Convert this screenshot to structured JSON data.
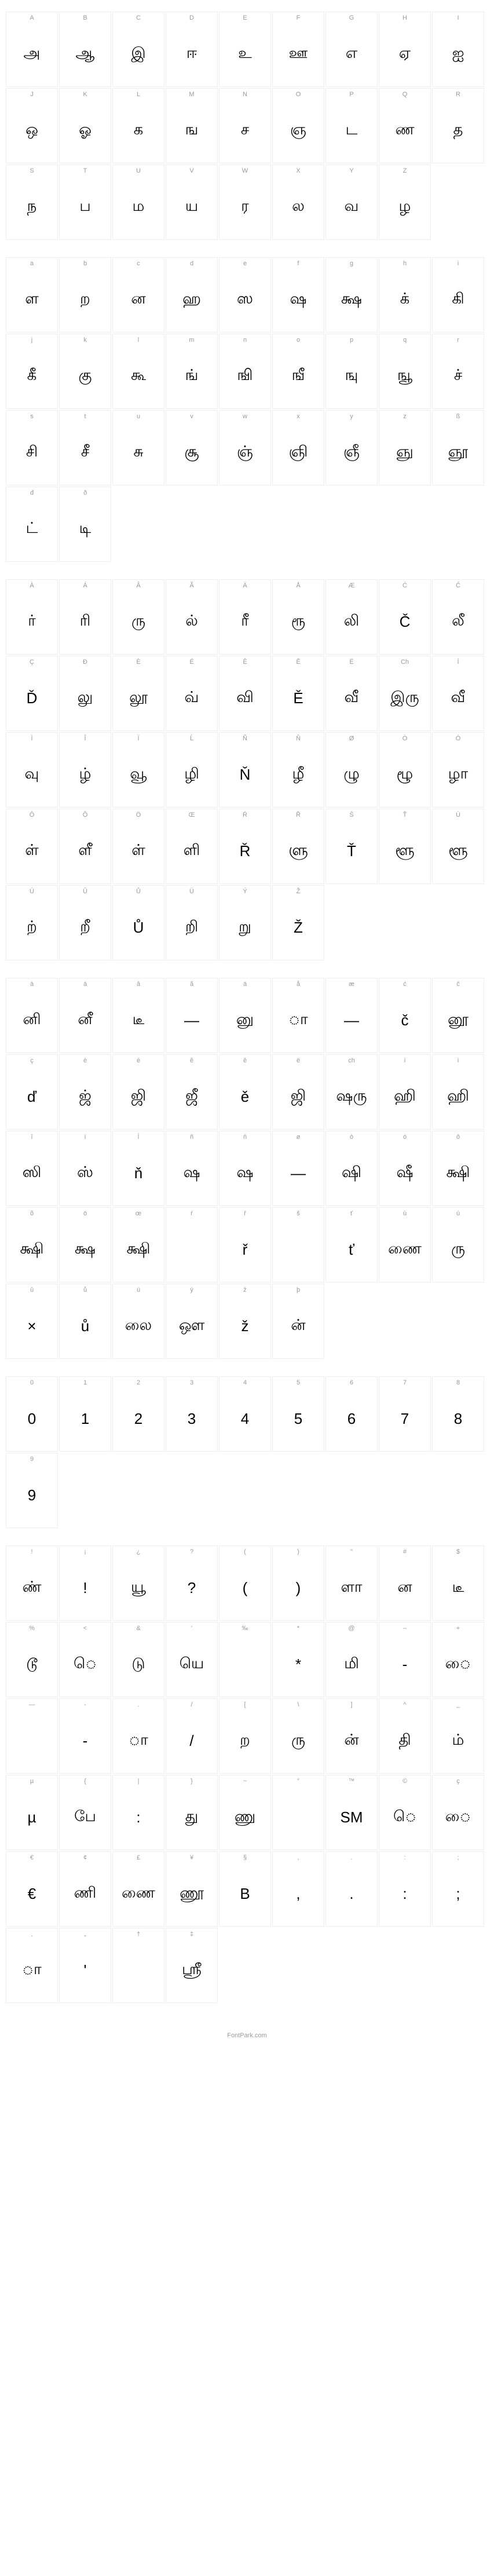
{
  "sections": [
    {
      "id": "uppercase",
      "cells": [
        {
          "label": "A",
          "glyph": "அ"
        },
        {
          "label": "B",
          "glyph": "ஆ"
        },
        {
          "label": "C",
          "glyph": "இ"
        },
        {
          "label": "D",
          "glyph": "ஈ"
        },
        {
          "label": "E",
          "glyph": "உ"
        },
        {
          "label": "F",
          "glyph": "ஊ"
        },
        {
          "label": "G",
          "glyph": "எ"
        },
        {
          "label": "H",
          "glyph": "ஏ"
        },
        {
          "label": "I",
          "glyph": "ஐ"
        },
        {
          "label": "J",
          "glyph": "ஒ"
        },
        {
          "label": "K",
          "glyph": "ஓ"
        },
        {
          "label": "L",
          "glyph": "க"
        },
        {
          "label": "M",
          "glyph": "ங"
        },
        {
          "label": "N",
          "glyph": "ச"
        },
        {
          "label": "O",
          "glyph": "ஞ"
        },
        {
          "label": "P",
          "glyph": "ட"
        },
        {
          "label": "Q",
          "glyph": "ண"
        },
        {
          "label": "R",
          "glyph": "த"
        },
        {
          "label": "S",
          "glyph": "ந"
        },
        {
          "label": "T",
          "glyph": "ப"
        },
        {
          "label": "U",
          "glyph": "ம"
        },
        {
          "label": "V",
          "glyph": "ய"
        },
        {
          "label": "W",
          "glyph": "ர"
        },
        {
          "label": "X",
          "glyph": "ல"
        },
        {
          "label": "Y",
          "glyph": "வ"
        },
        {
          "label": "Z",
          "glyph": "ழ"
        }
      ]
    },
    {
      "id": "lowercase",
      "cells": [
        {
          "label": "a",
          "glyph": "ள"
        },
        {
          "label": "b",
          "glyph": "ற"
        },
        {
          "label": "c",
          "glyph": "ன"
        },
        {
          "label": "d",
          "glyph": "ஹ"
        },
        {
          "label": "e",
          "glyph": "ஸ"
        },
        {
          "label": "f",
          "glyph": "ஷ"
        },
        {
          "label": "g",
          "glyph": "க்ஷ"
        },
        {
          "label": "h",
          "glyph": "க்"
        },
        {
          "label": "i",
          "glyph": "கி"
        },
        {
          "label": "j",
          "glyph": "கீ"
        },
        {
          "label": "k",
          "glyph": "கு"
        },
        {
          "label": "l",
          "glyph": "கூ"
        },
        {
          "label": "m",
          "glyph": "ங்"
        },
        {
          "label": "n",
          "glyph": "ஙி"
        },
        {
          "label": "o",
          "glyph": "ஙீ"
        },
        {
          "label": "p",
          "glyph": "ஙு"
        },
        {
          "label": "q",
          "glyph": "ஙூ"
        },
        {
          "label": "r",
          "glyph": "ச்"
        },
        {
          "label": "s",
          "glyph": "சி"
        },
        {
          "label": "t",
          "glyph": "சீ"
        },
        {
          "label": "u",
          "glyph": "சு"
        },
        {
          "label": "v",
          "glyph": "சூ"
        },
        {
          "label": "w",
          "glyph": "ஞ்"
        },
        {
          "label": "x",
          "glyph": "ஞி"
        },
        {
          "label": "y",
          "glyph": "ஞீ"
        },
        {
          "label": "z",
          "glyph": "ஞு"
        },
        {
          "label": "ß",
          "glyph": "ஞூ"
        },
        {
          "label": "đ",
          "glyph": "ட்"
        },
        {
          "label": "ð",
          "glyph": "டி"
        }
      ]
    },
    {
      "id": "accented-upper",
      "cells": [
        {
          "label": "À",
          "glyph": "ர்"
        },
        {
          "label": "Á",
          "glyph": "ரி"
        },
        {
          "label": "Â",
          "glyph": "ரு"
        },
        {
          "label": "Ã",
          "glyph": "ல்"
        },
        {
          "label": "Ä",
          "glyph": "ரீ"
        },
        {
          "label": "Å",
          "glyph": "ரூ"
        },
        {
          "label": "Æ",
          "glyph": "லி"
        },
        {
          "label": "Ć",
          "glyph": "Č"
        },
        {
          "label": "Č",
          "glyph": "லீ"
        },
        {
          "label": "Ç",
          "glyph": "Ď"
        },
        {
          "label": "Đ",
          "glyph": "லு"
        },
        {
          "label": "È",
          "glyph": "லூ"
        },
        {
          "label": "É",
          "glyph": "வ்"
        },
        {
          "label": "Ê",
          "glyph": "வி"
        },
        {
          "label": "Ě",
          "glyph": "Ě"
        },
        {
          "label": "Ë",
          "glyph": "வீ"
        },
        {
          "label": "Ch",
          "glyph": "இரு"
        },
        {
          "label": "Í",
          "glyph": "வீ"
        },
        {
          "label": "Ì",
          "glyph": "வு"
        },
        {
          "label": "Î",
          "glyph": "ழ்"
        },
        {
          "label": "Ï",
          "glyph": "வூ"
        },
        {
          "label": "Ĺ",
          "glyph": "ழி"
        },
        {
          "label": "Ñ",
          "glyph": "Ň"
        },
        {
          "label": "Ň",
          "glyph": "ழீ"
        },
        {
          "label": "Ø",
          "glyph": "ழு"
        },
        {
          "label": "Ò",
          "glyph": "ழூ"
        },
        {
          "label": "Ó",
          "glyph": "ழா"
        },
        {
          "label": "Ô",
          "glyph": "ள்"
        },
        {
          "label": "Õ",
          "glyph": "ளீ"
        },
        {
          "label": "Ö",
          "glyph": "ள்"
        },
        {
          "label": "Œ",
          "glyph": "ளி"
        },
        {
          "label": "Ŕ",
          "glyph": "Ř"
        },
        {
          "label": "Ř",
          "glyph": "ளு"
        },
        {
          "label": "Š",
          "glyph": "Ť"
        },
        {
          "label": "Ť",
          "glyph": "ளூ"
        },
        {
          "label": "Ù",
          "glyph": "ளூ"
        },
        {
          "label": "Ú",
          "glyph": "ற்"
        },
        {
          "label": "Û",
          "glyph": "றீ"
        },
        {
          "label": "Ů",
          "glyph": "Ů"
        },
        {
          "label": "Ü",
          "glyph": "றி"
        },
        {
          "label": "Ý",
          "glyph": "று"
        },
        {
          "label": "Ž",
          "glyph": "Ž"
        }
      ]
    },
    {
      "id": "accented-lower",
      "cells": [
        {
          "label": "à",
          "glyph": "னி"
        },
        {
          "label": "á",
          "glyph": "னீ"
        },
        {
          "label": "â",
          "glyph": "டீ"
        },
        {
          "label": "ã",
          "glyph": "—"
        },
        {
          "label": "ä",
          "glyph": "னு"
        },
        {
          "label": "å",
          "glyph": "ா"
        },
        {
          "label": "æ",
          "glyph": "—"
        },
        {
          "label": "ć",
          "glyph": "č"
        },
        {
          "label": "č",
          "glyph": "னூ"
        },
        {
          "label": "ç",
          "glyph": "ď"
        },
        {
          "label": "è",
          "glyph": "ஜ்"
        },
        {
          "label": "é",
          "glyph": "ஜி"
        },
        {
          "label": "ê",
          "glyph": "ஜீ"
        },
        {
          "label": "ě",
          "glyph": "ě"
        },
        {
          "label": "ë",
          "glyph": "ஜி"
        },
        {
          "label": "ch",
          "glyph": "ஷரு"
        },
        {
          "label": "í",
          "glyph": "ஹி"
        },
        {
          "label": "ì",
          "glyph": "ஹி"
        },
        {
          "label": "î",
          "glyph": "ஸி"
        },
        {
          "label": "ï",
          "glyph": "ஸ்"
        },
        {
          "label": "ĺ",
          "glyph": "ň"
        },
        {
          "label": "ñ",
          "glyph": "ஷ"
        },
        {
          "label": "ň",
          "glyph": "ஷ"
        },
        {
          "label": "ø",
          "glyph": "—"
        },
        {
          "label": "ò",
          "glyph": "ஷி"
        },
        {
          "label": "ó",
          "glyph": "ஷீ"
        },
        {
          "label": "ô",
          "glyph": "க்ஷி"
        },
        {
          "label": "õ",
          "glyph": "க்ஷி"
        },
        {
          "label": "ö",
          "glyph": "க்ஷ"
        },
        {
          "label": "œ",
          "glyph": "க்ஷி"
        },
        {
          "label": "ŕ",
          "glyph": ""
        },
        {
          "label": "ř",
          "glyph": "ř"
        },
        {
          "label": "š",
          "glyph": ""
        },
        {
          "label": "ť",
          "glyph": "ť"
        },
        {
          "label": "ù",
          "glyph": "ணை"
        },
        {
          "label": "ú",
          "glyph": "ரு"
        },
        {
          "label": "û",
          "glyph": "×"
        },
        {
          "label": "ů",
          "glyph": "ů"
        },
        {
          "label": "ü",
          "glyph": "லை"
        },
        {
          "label": "ý",
          "glyph": "ஔ"
        },
        {
          "label": "ž",
          "glyph": "ž"
        },
        {
          "label": "þ",
          "glyph": "ன்"
        }
      ]
    },
    {
      "id": "digits",
      "cells": [
        {
          "label": "0",
          "glyph": "0"
        },
        {
          "label": "1",
          "glyph": "1"
        },
        {
          "label": "2",
          "glyph": "2"
        },
        {
          "label": "3",
          "glyph": "3"
        },
        {
          "label": "4",
          "glyph": "4"
        },
        {
          "label": "5",
          "glyph": "5"
        },
        {
          "label": "6",
          "glyph": "6"
        },
        {
          "label": "7",
          "glyph": "7"
        },
        {
          "label": "8",
          "glyph": "8"
        },
        {
          "label": "9",
          "glyph": "9"
        }
      ]
    },
    {
      "id": "symbols",
      "cells": [
        {
          "label": "!",
          "glyph": "ண்"
        },
        {
          "label": "¡",
          "glyph": "!"
        },
        {
          "label": "¿",
          "glyph": "யூ"
        },
        {
          "label": "?",
          "glyph": "?"
        },
        {
          "label": "(",
          "glyph": "("
        },
        {
          "label": ")",
          "glyph": ")"
        },
        {
          "label": "\"",
          "glyph": "ளா"
        },
        {
          "label": "#",
          "glyph": "ன"
        },
        {
          "label": "$",
          "glyph": "டீ"
        },
        {
          "label": "%",
          "glyph": "டூ"
        },
        {
          "label": "<",
          "glyph": "ெ"
        },
        {
          "label": "&",
          "glyph": "டு"
        },
        {
          "label": "'",
          "glyph": "யெ"
        },
        {
          "label": "‰",
          "glyph": ""
        },
        {
          "label": "*",
          "glyph": "*"
        },
        {
          "label": "@",
          "glyph": "மி"
        },
        {
          "label": "–",
          "glyph": "-"
        },
        {
          "label": "+",
          "glyph": "ை"
        },
        {
          "label": "—",
          "glyph": ""
        },
        {
          "label": "-",
          "glyph": "-"
        },
        {
          "label": ".",
          "glyph": "ா"
        },
        {
          "label": "/",
          "glyph": "/"
        },
        {
          "label": "[",
          "glyph": "ற"
        },
        {
          "label": "\\",
          "glyph": "ரு"
        },
        {
          "label": "]",
          "glyph": "ன்"
        },
        {
          "label": "^",
          "glyph": "தி"
        },
        {
          "label": "_",
          "glyph": "ம்"
        },
        {
          "label": "µ",
          "glyph": "µ"
        },
        {
          "label": "{",
          "glyph": "பே"
        },
        {
          "label": "|",
          "glyph": ":"
        },
        {
          "label": "}",
          "glyph": "து"
        },
        {
          "label": "~",
          "glyph": "ணு"
        },
        {
          "label": "°",
          "glyph": ""
        },
        {
          "label": "™",
          "glyph": "SM"
        },
        {
          "label": "©",
          "glyph": "ெ"
        },
        {
          "label": "ç",
          "glyph": "ை"
        },
        {
          "label": "€",
          "glyph": "€"
        },
        {
          "label": "¢",
          "glyph": "ணி"
        },
        {
          "label": "£",
          "glyph": "ணை"
        },
        {
          "label": "¥",
          "glyph": "ணூ"
        },
        {
          "label": "§",
          "glyph": "B"
        },
        {
          "label": ",",
          "glyph": ","
        },
        {
          "label": ".",
          "glyph": "."
        },
        {
          "label": ":",
          "glyph": ":"
        },
        {
          "label": ";",
          "glyph": ";"
        },
        {
          "label": "‚",
          "glyph": "ா"
        },
        {
          "label": "„",
          "glyph": "'"
        },
        {
          "label": "†",
          "glyph": ""
        },
        {
          "label": "‡",
          "glyph": "ஸ்ரீ"
        }
      ]
    }
  ],
  "footer": "FontPark.com",
  "colors": {
    "border": "#eeeeee",
    "label": "#999999",
    "glyph": "#000000",
    "bg": "#ffffff"
  }
}
